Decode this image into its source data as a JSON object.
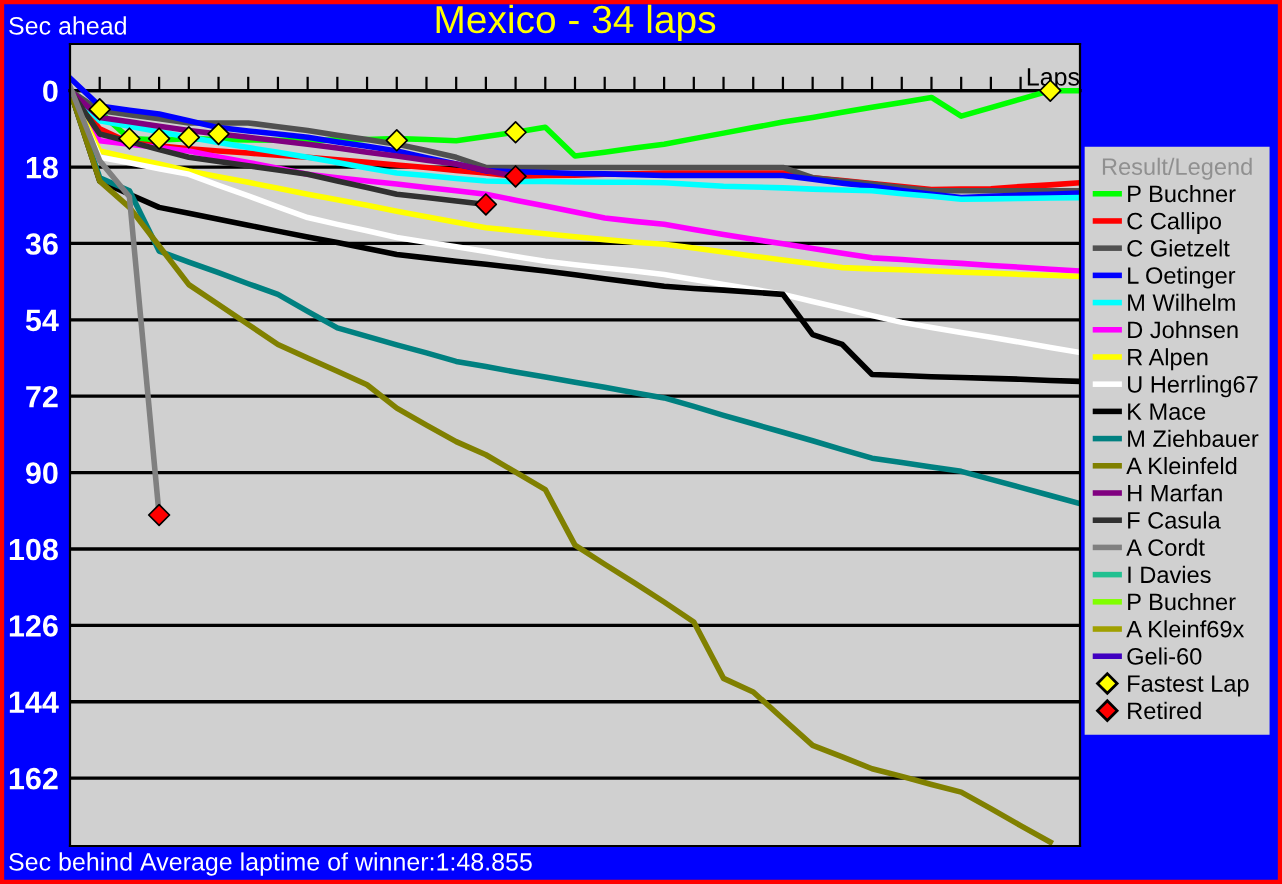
{
  "chart_data": {
    "type": "line",
    "title": "Mexico - 34 laps",
    "ylabel": "Sec ahead",
    "xlabel": "Laps",
    "legend_title": "Result/Legend",
    "annotations": [
      "Sec behind",
      "Average laptime of winner:1:48.855"
    ],
    "categories": [
      null,
      null,
      null,
      null,
      null,
      null,
      null,
      null,
      null,
      null,
      null,
      null,
      null,
      null,
      null,
      null,
      null,
      null,
      null,
      null,
      null,
      null,
      null,
      null,
      null,
      null,
      null,
      null,
      null,
      null,
      null,
      null,
      null,
      null,
      null
    ],
    "ylim": [
      178,
      -11
    ],
    "yticks": [
      0,
      18,
      36,
      54,
      72,
      90,
      108,
      126,
      144,
      162
    ],
    "grid": "y",
    "legend": "right",
    "tick_labels": "y",
    "marker": "none",
    "line_style": "solid",
    "series": [
      {
        "name": "P Buchner",
        "color": "#00ff00",
        "values": [
          0,
          5,
          11.3,
          11.6,
          11.3,
          11.5,
          11.6,
          11.7,
          11.8,
          11.6,
          11.5,
          11.3,
          11.5,
          11.8,
          10.8,
          9.8,
          8.6,
          15.4,
          14.5,
          13.5,
          12.6,
          11.3,
          10,
          8.7,
          7.4,
          6.3,
          5.1,
          3.9,
          2.8,
          1.6,
          6,
          4,
          2,
          0,
          0
        ]
      },
      {
        "name": "C Callipo",
        "color": "#ff0000",
        "values": [
          0,
          9,
          12.3,
          13,
          13.7,
          14.2,
          14.7,
          15.2,
          15.7,
          16.3,
          16.9,
          17.5,
          18.1,
          18.8,
          19.4,
          20.2,
          20,
          19.9,
          19.7,
          19.6,
          19.4,
          19.4,
          19.4,
          19.4,
          19.4,
          20.5,
          21.2,
          21.9,
          22.6,
          23.3,
          23.2,
          23.1,
          22.6,
          22.2,
          21.7
        ]
      },
      {
        "name": "C Gietzelt",
        "color": "#505050",
        "values": [
          0,
          4.7,
          5.7,
          6.6,
          7.6,
          7.6,
          7.6,
          8.5,
          9.4,
          10.5,
          11.5,
          12.6,
          14.1,
          15.7,
          18.1,
          18.1,
          18.1,
          18.1,
          18.1,
          18.1,
          18.1,
          18.1,
          18.1,
          18.1,
          18.1,
          20.5,
          21.3,
          22,
          22.8,
          23.6,
          23.6,
          23.6,
          23.6,
          23.6,
          23.6
        ]
      },
      {
        "name": "L Oetinger",
        "color": "#0000ff",
        "values": [
          -3,
          3.6,
          4.6,
          5.5,
          7.1,
          8.7,
          9.5,
          10.2,
          11,
          12.1,
          13.1,
          14.2,
          15.8,
          17.3,
          18.9,
          19.1,
          19.3,
          19.5,
          19.6,
          19.8,
          20,
          20,
          20,
          20,
          20,
          20.9,
          21.8,
          22.6,
          23.5,
          24.4,
          25.2,
          24.9,
          24.6,
          24.4,
          24.1
        ]
      },
      {
        "name": "M Wilhelm",
        "color": "#00ffff",
        "values": [
          0,
          7.1,
          8.4,
          9.7,
          11,
          12.2,
          13.4,
          14.5,
          15.7,
          16.9,
          18.2,
          19.4,
          20,
          20.7,
          21.3,
          21.4,
          21.4,
          21.5,
          21.6,
          21.6,
          21.7,
          22.1,
          22.5,
          22.7,
          22.9,
          23.2,
          23.4,
          23.6,
          24.3,
          24.9,
          25.6,
          25.5,
          25.4,
          25.3,
          25.2
        ]
      },
      {
        "name": "D Johnsen",
        "color": "#ff00ff",
        "values": [
          0,
          11.8,
          12.6,
          13.4,
          14.2,
          15.6,
          16.9,
          18.3,
          19.7,
          20.5,
          21.3,
          22,
          22.8,
          23.6,
          24.4,
          25.8,
          27.2,
          28.6,
          30,
          30.8,
          31.5,
          32.7,
          33.9,
          35,
          36.1,
          37.2,
          38.3,
          39.4,
          39.8,
          40.3,
          40.7,
          41.2,
          41.6,
          42.1,
          42.5
        ]
      },
      {
        "name": "R Alpen",
        "color": "#ffff00",
        "values": [
          0,
          14.2,
          15.8,
          17.3,
          18.9,
          20.3,
          21.6,
          23,
          24.4,
          25.7,
          27,
          28.4,
          29.7,
          31,
          32.3,
          33,
          33.7,
          34.4,
          35.1,
          35.7,
          36.2,
          37.1,
          38,
          39,
          39.9,
          40.8,
          41.7,
          42,
          42.2,
          42.5,
          42.8,
          43,
          43.3,
          43.5,
          43.8
        ]
      },
      {
        "name": "U Herrling67",
        "color": "#ffffff",
        "values": [
          0,
          15.7,
          17,
          18.4,
          19.7,
          22.3,
          24.8,
          27.4,
          29.9,
          31.5,
          33,
          34.6,
          35.7,
          36.8,
          37.9,
          39.1,
          40.2,
          41,
          41.8,
          42.5,
          43.3,
          44.5,
          45.7,
          46.8,
          48,
          49.7,
          51.3,
          53,
          54.6,
          55.8,
          57,
          58.1,
          59.3,
          60.5,
          61.7
        ]
      },
      {
        "name": "K Mace",
        "color": "#000000",
        "values": [
          0,
          21.3,
          24.4,
          27.5,
          28.9,
          30.3,
          31.7,
          33.1,
          34.5,
          35.8,
          37.2,
          38.6,
          39.4,
          40.2,
          40.9,
          41.7,
          42.5,
          43.4,
          44.3,
          45.2,
          46.1,
          46.6,
          47,
          47.5,
          48,
          57.5,
          59.8,
          66.9,
          67.1,
          67.4,
          67.6,
          67.8,
          68,
          68.3,
          68.5
        ]
      },
      {
        "name": "M Ziehbauer",
        "color": "#008080",
        "values": [
          0,
          20.5,
          23.6,
          37.8,
          40.4,
          42.9,
          45.5,
          48,
          52,
          55.9,
          57.9,
          59.9,
          61.8,
          63.8,
          65,
          66.3,
          67.5,
          68.7,
          69.9,
          71.2,
          72.4,
          74.4,
          76.5,
          78.5,
          80.5,
          82.5,
          84.6,
          86.6,
          87.6,
          88.7,
          89.7,
          91.6,
          93.5,
          95.4,
          97.3
        ]
      },
      {
        "name": "A Kleinfeld",
        "color": "#808000",
        "values": [
          0,
          21.3,
          27.5,
          36.6,
          45.7,
          50.4,
          55.1,
          59.8,
          63,
          66.1,
          69.3,
          74.8,
          78.8,
          82.7,
          85.8,
          89.9,
          94,
          107.1,
          111.6,
          116,
          120.5,
          125.2,
          138.5,
          141.7,
          148,
          154.3,
          157,
          159.8,
          161.6,
          163.5,
          165.3,
          169.2,
          173.2,
          177.1,
          null
        ]
      },
      {
        "name": "H Marfan",
        "color": "#800080",
        "values": [
          0,
          6.3,
          7.3,
          8.4,
          9.4,
          10.2,
          11,
          11.8,
          12.6,
          13.5,
          14.5,
          15.4,
          16.4,
          17.3,
          18.8,
          20.2,
          null,
          null,
          null,
          null,
          null,
          null,
          null,
          null,
          null,
          null,
          null,
          null,
          null,
          null,
          null,
          null,
          null,
          null,
          null
        ]
      },
      {
        "name": "F Casula",
        "color": "#303030",
        "values": [
          0,
          10.2,
          12,
          13.9,
          15.7,
          16.7,
          17.7,
          18.7,
          19.7,
          21.3,
          22.8,
          24.4,
          25.2,
          26,
          26.8,
          null,
          null,
          null,
          null,
          null,
          null,
          null,
          null,
          null,
          null,
          null,
          null,
          null,
          null,
          null,
          null,
          null,
          null,
          null,
          null
        ]
      },
      {
        "name": "A Cordt",
        "color": "#808080",
        "values": [
          -1,
          16.5,
          25,
          100,
          null,
          null,
          null,
          null,
          null,
          null,
          null,
          null,
          null,
          null,
          null,
          null,
          null,
          null,
          null,
          null,
          null,
          null,
          null,
          null,
          null,
          null,
          null,
          null,
          null,
          null,
          null,
          null,
          null,
          null,
          null
        ]
      },
      {
        "name": "I Davies",
        "color": "#20c090",
        "values": [
          null,
          null,
          null,
          null,
          null,
          null,
          null,
          null,
          null,
          null,
          null,
          null,
          null,
          null,
          null,
          null,
          null,
          null,
          null,
          null,
          null,
          null,
          null,
          null,
          null,
          null,
          null,
          null,
          null,
          null,
          null,
          null,
          null,
          null,
          null
        ]
      },
      {
        "name": "P Buchner",
        "color": "#80ff00",
        "values": [
          null,
          null,
          null,
          null,
          null,
          null,
          null,
          null,
          null,
          null,
          null,
          null,
          null,
          null,
          null,
          null,
          null,
          null,
          null,
          null,
          null,
          null,
          null,
          null,
          null,
          null,
          null,
          null,
          null,
          null,
          null,
          null,
          null,
          null,
          null
        ]
      },
      {
        "name": "A Kleinf69x",
        "color": "#a0a000",
        "values": [
          null,
          null,
          null,
          null,
          null,
          null,
          null,
          null,
          null,
          null,
          null,
          null,
          null,
          null,
          null,
          null,
          null,
          null,
          null,
          null,
          null,
          null,
          null,
          null,
          null,
          null,
          null,
          null,
          null,
          null,
          null,
          null,
          null,
          null,
          null
        ]
      },
      {
        "name": "Geli-60",
        "color": "#4000c0",
        "values": [
          null,
          null,
          null,
          null,
          null,
          null,
          null,
          null,
          null,
          null,
          null,
          null,
          null,
          null,
          null,
          null,
          null,
          null,
          null,
          null,
          null,
          null,
          null,
          null,
          null,
          null,
          null,
          null,
          null,
          null,
          null,
          null,
          null,
          null,
          null
        ]
      },
      {
        "name": "Fastest Lap",
        "type": "scatter",
        "marker": "diamond",
        "color": "#ffff00",
        "values": [
          null,
          4.4,
          11.3,
          11.3,
          11,
          10.2,
          null,
          null,
          null,
          null,
          null,
          11.7,
          null,
          null,
          null,
          9.8,
          null,
          null,
          null,
          null,
          null,
          null,
          null,
          null,
          null,
          null,
          null,
          null,
          null,
          null,
          null,
          null,
          null,
          0,
          null
        ]
      },
      {
        "name": "Retired",
        "type": "scatter",
        "marker": "diamond",
        "color": "#ff0000",
        "values": [
          null,
          null,
          null,
          100,
          null,
          null,
          null,
          null,
          null,
          null,
          null,
          null,
          null,
          null,
          26.8,
          20.2,
          null,
          null,
          null,
          null,
          null,
          null,
          null,
          null,
          null,
          null,
          null,
          null,
          null,
          null,
          null,
          null,
          null,
          null,
          null
        ]
      }
    ]
  }
}
